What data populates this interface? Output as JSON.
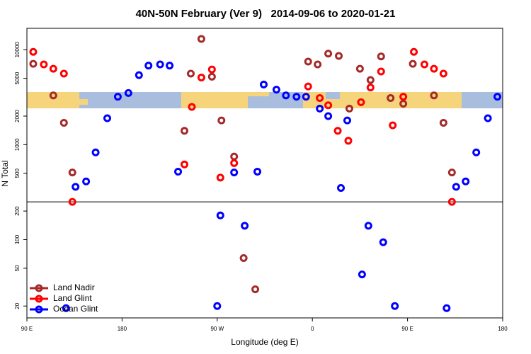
{
  "chart_data": {
    "type": "scatter",
    "title": "40N-50N February (Ver 9)   2014-09-06 to 2020-01-21",
    "x_label": "Longitude (deg E)",
    "y_label": "N Total",
    "ylog": true,
    "xlim": [
      90,
      540
    ],
    "ylim": [
      15,
      16800
    ],
    "xticks": [
      {
        "value": 90,
        "label": "90 E"
      },
      {
        "value": 180,
        "label": "180"
      },
      {
        "value": 270,
        "label": "90 W"
      },
      {
        "value": 360,
        "label": "0"
      },
      {
        "value": 450,
        "label": "90 E"
      },
      {
        "value": 540,
        "label": "180"
      }
    ],
    "yticks": [
      20,
      50,
      100,
      200,
      500,
      1000,
      2000,
      5000,
      10000
    ],
    "hline": 250,
    "legend": "bottomleft",
    "series": [
      {
        "name": "Land Nadir",
        "color": "#a52a2a",
        "x": [
          96,
          115,
          125,
          133,
          239,
          245,
          255,
          265,
          274,
          286,
          306,
          295,
          356,
          365,
          375,
          385,
          395,
          405,
          415,
          425,
          434,
          446,
          455,
          475,
          484,
          492
        ],
        "values": [
          7100,
          3300,
          1700,
          510,
          1400,
          5600,
          13000,
          5200,
          1800,
          750,
          30,
          64,
          7500,
          7000,
          9100,
          8600,
          2400,
          6300,
          4800,
          8500,
          3100,
          2700,
          7100,
          3300,
          1700,
          510
        ]
      },
      {
        "name": "Land Glint",
        "color": "#ff0000",
        "x": [
          96,
          106,
          115,
          125,
          133,
          246,
          239,
          255,
          265,
          273,
          286,
          356,
          367,
          375,
          384,
          394,
          406,
          415,
          425,
          436,
          446,
          456,
          466,
          475,
          484,
          492
        ],
        "values": [
          9500,
          7000,
          6300,
          5600,
          250,
          2500,
          620,
          5100,
          6200,
          450,
          640,
          4100,
          3100,
          2600,
          1400,
          1100,
          2800,
          4000,
          5900,
          1600,
          3200,
          9500,
          7000,
          6300,
          5600,
          250
        ]
      },
      {
        "name": "Ocean Glint",
        "color": "#0000ff",
        "x": [
          127,
          136,
          146,
          155,
          166,
          176,
          186,
          196,
          205,
          216,
          225,
          233,
          270,
          273,
          286,
          296,
          308,
          314,
          326,
          335,
          345,
          354,
          367,
          375,
          387,
          393,
          407,
          413,
          427,
          438,
          487,
          496,
          505,
          515,
          526,
          535
        ],
        "values": [
          19,
          360,
          410,
          830,
          1900,
          3200,
          3500,
          5400,
          6800,
          7000,
          6800,
          520,
          20,
          180,
          510,
          140,
          520,
          4300,
          3800,
          3300,
          3200,
          3200,
          2400,
          2000,
          350,
          1800,
          43,
          140,
          94,
          20,
          19,
          360,
          410,
          830,
          1900,
          3200
        ]
      }
    ]
  }
}
